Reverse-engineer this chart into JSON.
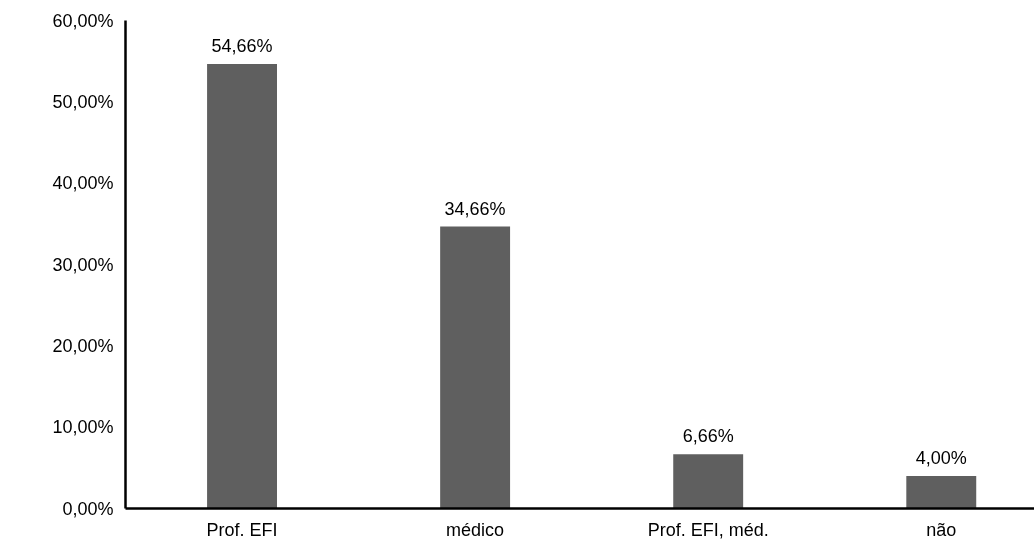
{
  "chart_data": {
    "type": "bar",
    "categories": [
      "Prof. EFI",
      "médico",
      "Prof. EFI, méd.",
      "não"
    ],
    "values": [
      54.66,
      34.66,
      6.66,
      4.0
    ],
    "value_labels": [
      "54,66%",
      "34,66%",
      "6,66%",
      "4,00%"
    ],
    "color": "#5f5f5f",
    "ylim": [
      0,
      60
    ],
    "yticks": [
      {
        "value": 0,
        "label": "0,00%"
      },
      {
        "value": 10,
        "label": "10,00%"
      },
      {
        "value": 20,
        "label": "20,00%"
      },
      {
        "value": 30,
        "label": "30,00%"
      },
      {
        "value": 40,
        "label": "40,00%"
      },
      {
        "value": 50,
        "label": "50,00%"
      },
      {
        "value": 60,
        "label": "60,00%"
      }
    ],
    "grid": false
  }
}
